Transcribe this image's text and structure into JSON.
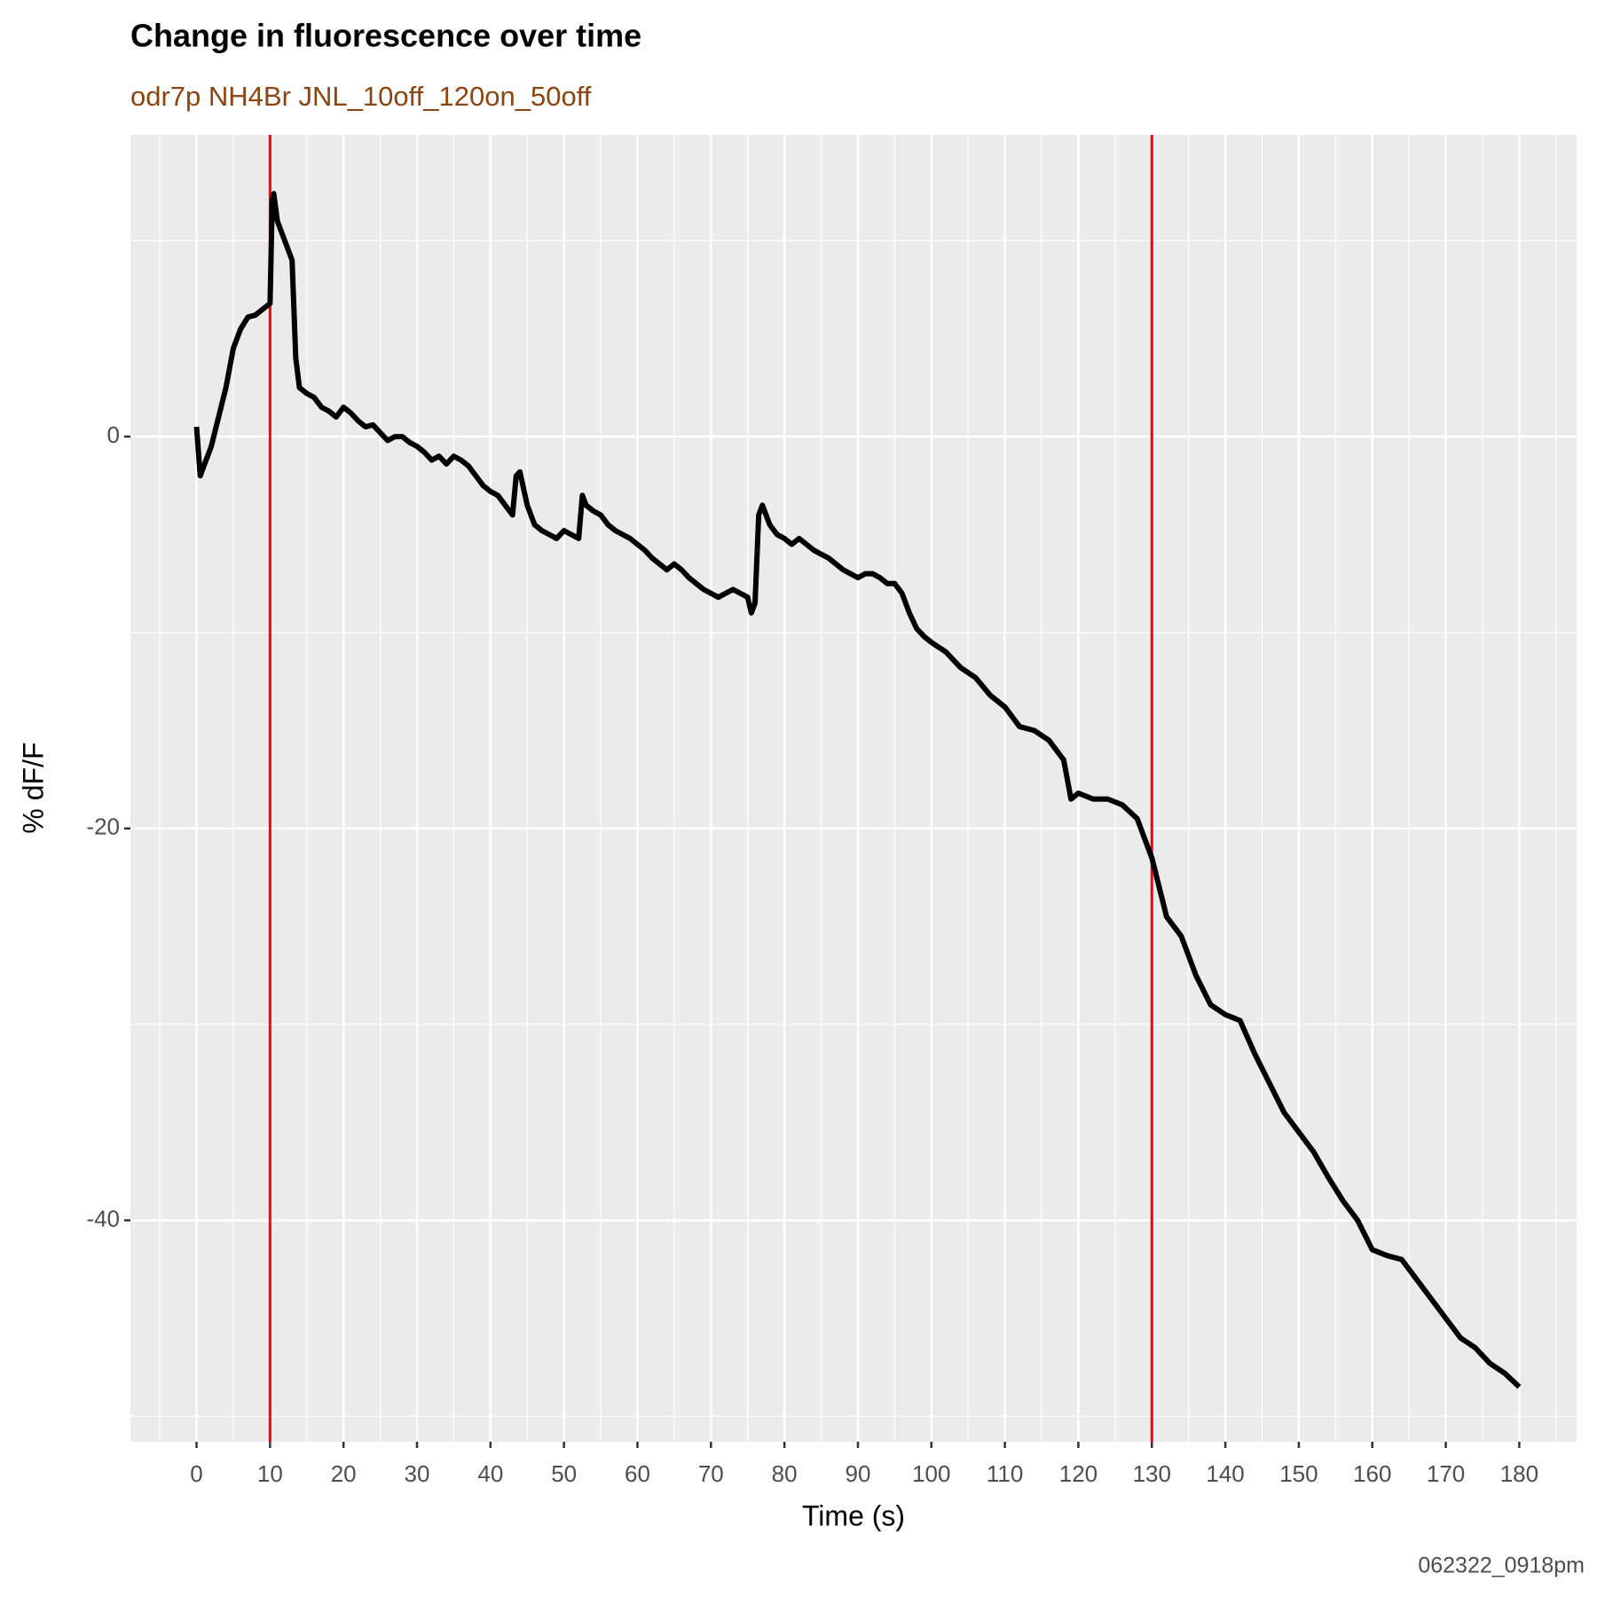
{
  "chart_data": {
    "type": "line",
    "title": "Change in fluorescence over time",
    "subtitle": "odr7p NH4Br JNL_10off_120on_50off",
    "x_label": "Time (s)",
    "y_label": "% dF/F",
    "caption": "062322_0918pm",
    "color": "#000000",
    "x": [
      0,
      0.5,
      1,
      2,
      3,
      4,
      5,
      6,
      7,
      8,
      9,
      10,
      10.3,
      10.5,
      11,
      12,
      13,
      13.5,
      14,
      15,
      16,
      17,
      18,
      19,
      20,
      21,
      22,
      23,
      24,
      25,
      26,
      27,
      28,
      29,
      30,
      31,
      32,
      33,
      34,
      35,
      36,
      37,
      38,
      39,
      40,
      41,
      42,
      43,
      43.5,
      44,
      45,
      46,
      47,
      48,
      49,
      50,
      51,
      52,
      52.5,
      53,
      54,
      55,
      56,
      57,
      58,
      59,
      60,
      61,
      62,
      63,
      64,
      65,
      66,
      67,
      68,
      69,
      70,
      71,
      72,
      73,
      74,
      75,
      75.5,
      76,
      76.5,
      77,
      78,
      79,
      80,
      81,
      82,
      83,
      84,
      85,
      86,
      87,
      88,
      89,
      90,
      91,
      92,
      93,
      94,
      95,
      96,
      97,
      98,
      99,
      100,
      102,
      104,
      106,
      108,
      110,
      112,
      114,
      116,
      118,
      119,
      120,
      122,
      124,
      126,
      128,
      130,
      132,
      134,
      136,
      138,
      140,
      142,
      144,
      146,
      148,
      150,
      152,
      154,
      156,
      158,
      160,
      162,
      164,
      166,
      168,
      170,
      172,
      174,
      176,
      178,
      180
    ],
    "values": [
      0.5,
      -2,
      -1.5,
      -0.5,
      1,
      2.5,
      4.5,
      5.5,
      6.1,
      6.2,
      6.5,
      6.8,
      12,
      12.4,
      11,
      10,
      9,
      4,
      2.5,
      2.2,
      2,
      1.5,
      1.3,
      1,
      1.5,
      1.2,
      0.8,
      0.5,
      0.6,
      0.2,
      -0.2,
      0,
      0,
      -0.3,
      -0.5,
      -0.8,
      -1.2,
      -1,
      -1.4,
      -1,
      -1.2,
      -1.5,
      -2,
      -2.5,
      -2.8,
      -3,
      -3.5,
      -4,
      -2,
      -1.8,
      -3.5,
      -4.5,
      -4.8,
      -5,
      -5.2,
      -4.8,
      -5,
      -5.2,
      -3,
      -3.5,
      -3.8,
      -4,
      -4.5,
      -4.8,
      -5,
      -5.2,
      -5.5,
      -5.8,
      -6.2,
      -6.5,
      -6.8,
      -6.5,
      -6.8,
      -7.2,
      -7.5,
      -7.8,
      -8,
      -8.2,
      -8,
      -7.8,
      -8,
      -8.2,
      -9,
      -8.5,
      -4,
      -3.5,
      -4.5,
      -5,
      -5.2,
      -5.5,
      -5.2,
      -5.5,
      -5.8,
      -6,
      -6.2,
      -6.5,
      -6.8,
      -7,
      -7.2,
      -7,
      -7,
      -7.2,
      -7.5,
      -7.5,
      -8,
      -9,
      -9.8,
      -10.2,
      -10.5,
      -11,
      -11.8,
      -12.3,
      -13.2,
      -13.8,
      -14.8,
      -15,
      -15.5,
      -16.5,
      -18.5,
      -18.2,
      -18.5,
      -18.5,
      -18.8,
      -19.5,
      -21.5,
      -24.5,
      -25.5,
      -27.5,
      -29,
      -29.5,
      -29.8,
      -31.5,
      -33,
      -34.5,
      -35.5,
      -36.5,
      -37.8,
      -39,
      -40,
      -41.5,
      -41.8,
      -42,
      -43,
      -44,
      -45,
      -46,
      -46.5,
      -47.3,
      -47.8,
      -48.5
    ],
    "xlim": [
      -9,
      187.8
    ],
    "ylim": [
      -51.3,
      15.4
    ],
    "xticks": [
      0,
      10,
      20,
      30,
      40,
      50,
      60,
      70,
      80,
      90,
      100,
      110,
      120,
      130,
      140,
      150,
      160,
      170,
      180
    ],
    "yticks": [
      -40,
      -20,
      0
    ],
    "x_minor_grid": [
      -5,
      5,
      15,
      25,
      35,
      45,
      55,
      65,
      75,
      85,
      95,
      105,
      115,
      125,
      135,
      145,
      155,
      165,
      175,
      185
    ],
    "y_minor_grid": [
      -50,
      -30,
      -10,
      10
    ],
    "grid": true,
    "vlines": [
      10,
      130
    ],
    "vline_color": "#ff0000"
  }
}
